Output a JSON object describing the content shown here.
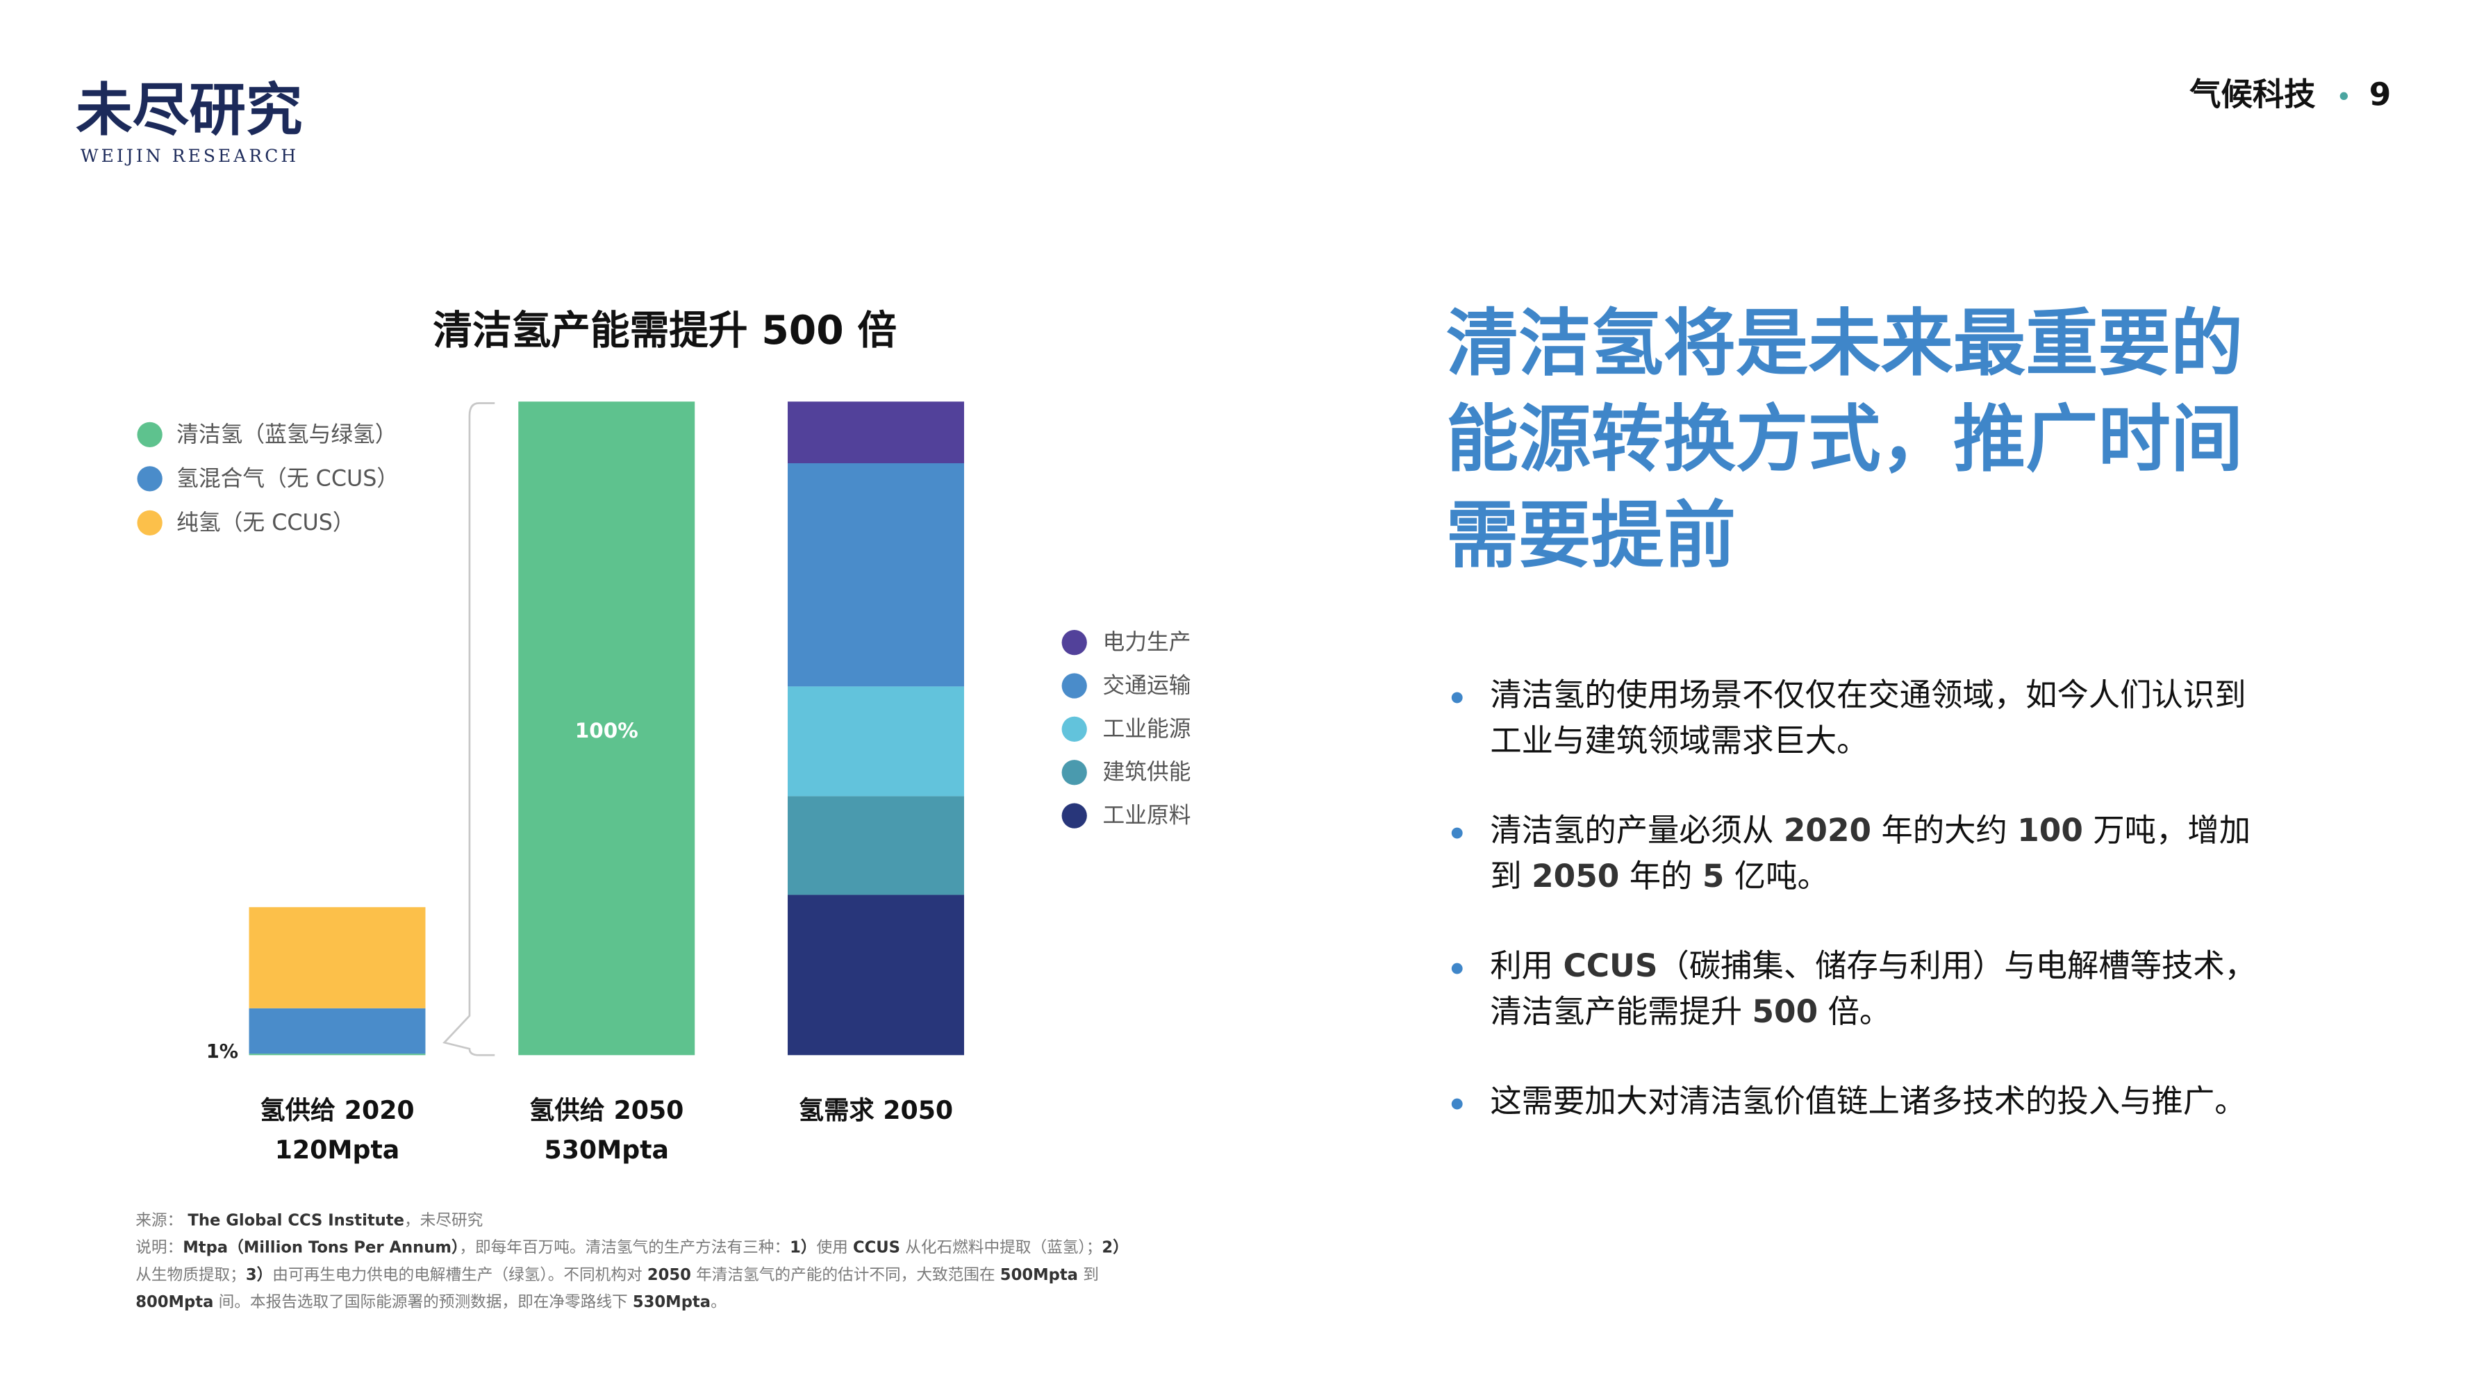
{
  "logo": {
    "name": "未尽研究",
    "subtitle": "WEIJIN RESEARCH"
  },
  "header": {
    "section": "气候科技",
    "page": "9"
  },
  "chart_data": {
    "type": "stacked_bar",
    "title": "清洁氢产能需提升 500 倍",
    "categories": [
      "氢供给 2020",
      "氢供给 2050",
      "氢需求 2050"
    ],
    "category_notes": [
      "120Mpta",
      "530Mpta",
      null
    ],
    "annotations": [
      "1%",
      "100%"
    ],
    "series": [
      {
        "name": "清洁氢（蓝氢与绿氢）",
        "color": "#5ec28e",
        "values": [
          1.2,
          530,
          null
        ]
      },
      {
        "name": "氢混合气（无 CCUS）",
        "color": "#4a8cca",
        "values": [
          36.8,
          null,
          null
        ]
      },
      {
        "name": "纯氢（无 CCUS）",
        "color": "#fcc04a",
        "values": [
          82,
          null,
          null
        ]
      },
      {
        "name": "工业原料",
        "color": "#28367a",
        "values": [
          null,
          null,
          130
        ]
      },
      {
        "name": "建筑供能",
        "color": "#4a9aae",
        "values": [
          null,
          null,
          80
        ]
      },
      {
        "name": "工业能源",
        "color": "#62c3dc",
        "values": [
          null,
          null,
          89
        ]
      },
      {
        "name": "交通运输",
        "color": "#4a8cca",
        "values": [
          null,
          null,
          181
        ]
      },
      {
        "name": "电力生产",
        "color": "#52419a",
        "values": [
          null,
          null,
          50
        ]
      }
    ]
  },
  "headline": [
    "清洁氢将是未来最重要的",
    "能源转换方式，推广时间",
    "需要提前"
  ],
  "bullets": [
    [
      [
        "清洁氢的使用场景不仅仅在交通领域，如今人们认识到"
      ],
      [
        "工业与建筑领域需求巨大。"
      ]
    ],
    [
      [
        "清洁氢的产量必须从 ",
        {
          "text": "2020",
          "bold": true
        },
        " 年的大约 ",
        {
          "text": "100",
          "bold": true
        },
        " 万吨，增加"
      ],
      [
        "到 ",
        {
          "text": "2050",
          "bold": true
        },
        " 年的 ",
        {
          "text": "5",
          "bold": true
        },
        " 亿吨。"
      ]
    ],
    [
      [
        "利用 ",
        {
          "text": "CCUS",
          "bold": true
        },
        "（碳捕集、储存与利用）与电解槽等技术，"
      ],
      [
        "清洁氢产能需提升 ",
        {
          "text": "500",
          "bold": true
        },
        " 倍。"
      ]
    ],
    [
      [
        "这需要加大对清洁氢价值链上诸多技术的投入与推广。"
      ]
    ]
  ],
  "footnotes": [
    [
      "来源： ",
      {
        "text": "The Global CCS Institute",
        "bold": true
      },
      "，未尽研究"
    ],
    [
      "说明：",
      {
        "text": "Mtpa（Million Tons Per Annum）",
        "bold": true
      },
      "，即每年百万吨。清洁氢气的生产方法有三种：",
      {
        "text": "1）",
        "bold": true
      },
      "使用 ",
      {
        "text": "CCUS",
        "bold": true
      },
      " 从化石燃料中提取（蓝氢）；",
      {
        "text": "2）",
        "bold": true
      }
    ],
    [
      "从生物质提取；",
      {
        "text": "3）",
        "bold": true
      },
      "由可再生电力供电的电解槽生产（绿氢）。不同机构对 ",
      {
        "text": "2050",
        "bold": true
      },
      " 年清洁氢气的产能的估计不同，大致范围在 ",
      {
        "text": "500Mpta",
        "bold": true
      },
      " 到"
    ],
    [
      {
        "text": "800Mpta",
        "bold": true
      },
      " 间。本报告选取了国际能源署的预测数据，即在净零路线下 ",
      {
        "text": "530Mpta",
        "bold": true
      },
      "。"
    ]
  ]
}
